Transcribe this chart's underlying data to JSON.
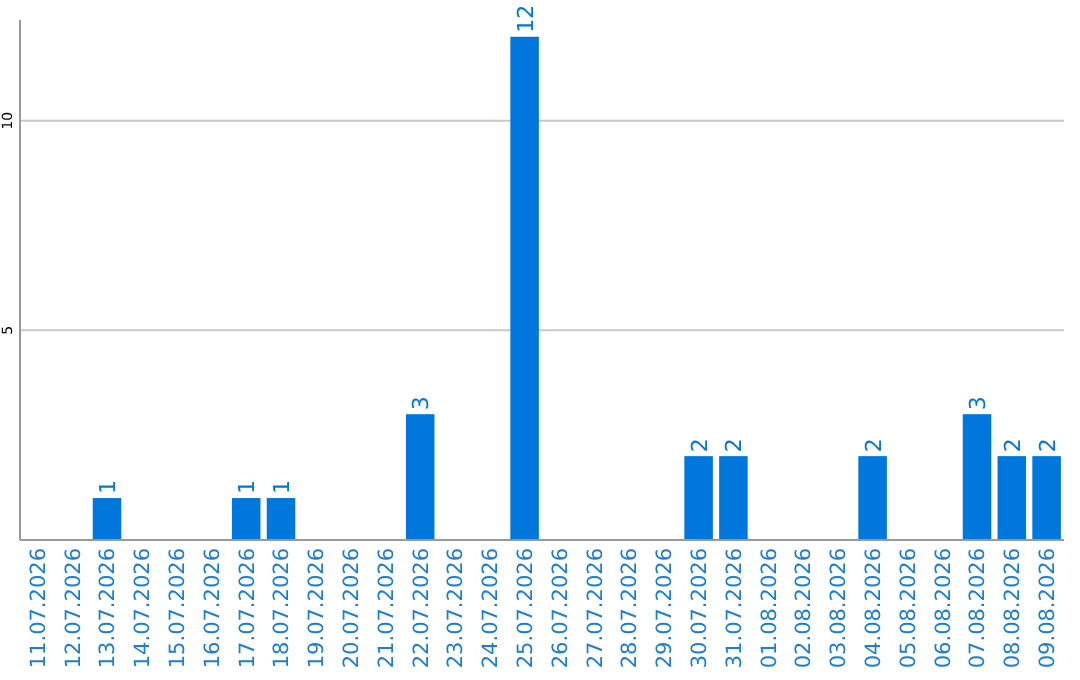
{
  "chart_data": {
    "type": "bar",
    "categories": [
      "11.07.2026",
      "12.07.2026",
      "13.07.2026",
      "14.07.2026",
      "15.07.2026",
      "16.07.2026",
      "17.07.2026",
      "18.07.2026",
      "19.07.2026",
      "20.07.2026",
      "21.07.2026",
      "22.07.2026",
      "23.07.2026",
      "24.07.2026",
      "25.07.2026",
      "26.07.2026",
      "27.07.2026",
      "28.07.2026",
      "29.07.2026",
      "30.07.2026",
      "31.07.2026",
      "01.08.2026",
      "02.08.2026",
      "03.08.2026",
      "04.08.2026",
      "05.08.2026",
      "06.08.2026",
      "07.08.2026",
      "08.08.2026",
      "09.08.2026"
    ],
    "values": [
      0,
      0,
      1,
      0,
      0,
      0,
      1,
      1,
      0,
      0,
      0,
      3,
      0,
      0,
      12,
      0,
      0,
      0,
      0,
      2,
      2,
      0,
      0,
      0,
      2,
      0,
      0,
      3,
      2,
      2
    ],
    "value_labels": [
      null,
      null,
      "1",
      null,
      null,
      null,
      "1",
      "1",
      null,
      null,
      null,
      "3",
      null,
      null,
      "12",
      null,
      null,
      null,
      null,
      "2",
      "2",
      null,
      null,
      null,
      "2",
      null,
      null,
      "3",
      "2",
      "2"
    ],
    "color": "#0077dd",
    "ylim": [
      0,
      12.4
    ],
    "yticks": [
      5,
      10
    ],
    "grid": "y"
  }
}
